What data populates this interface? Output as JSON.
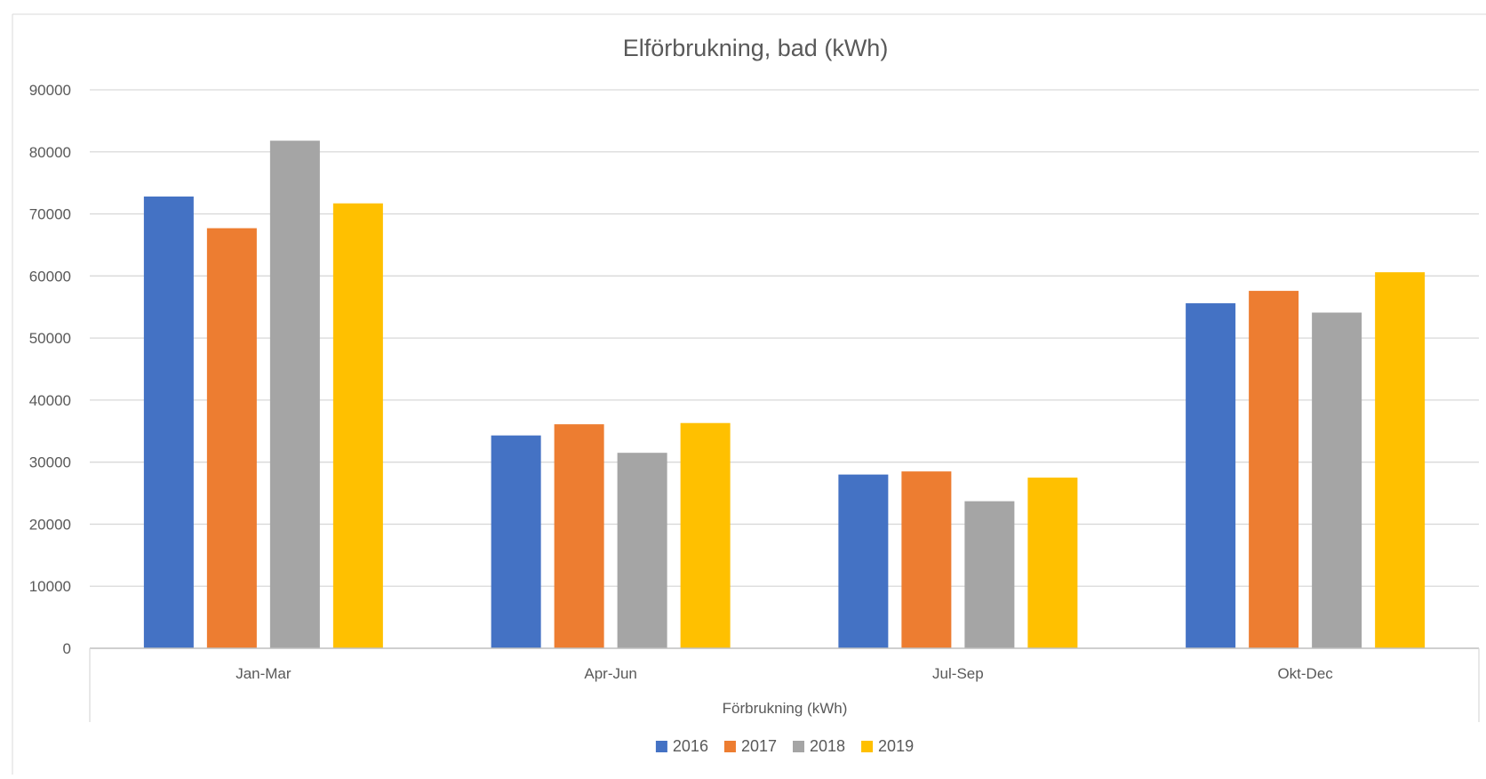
{
  "chart_data": {
    "type": "bar",
    "title": "Elförbrukning, bad (kWh)",
    "xlabel": "Förbrukning (kWh)",
    "ylabel": "",
    "categories": [
      "Jan-Mar",
      "Apr-Jun",
      "Jul-Sep",
      "Okt-Dec"
    ],
    "series": [
      {
        "name": "2016",
        "color": "#4472C4",
        "values": [
          72800,
          34300,
          28000,
          55600
        ]
      },
      {
        "name": "2017",
        "color": "#ED7D31",
        "values": [
          67700,
          36100,
          28500,
          57600
        ]
      },
      {
        "name": "2018",
        "color": "#A5A5A5",
        "values": [
          81800,
          31500,
          23700,
          54100
        ]
      },
      {
        "name": "2019",
        "color": "#FFC000",
        "values": [
          71700,
          36300,
          27500,
          60600
        ]
      }
    ],
    "ylim": [
      0,
      90000
    ],
    "yticks": [
      0,
      10000,
      20000,
      30000,
      40000,
      50000,
      60000,
      70000,
      80000,
      90000
    ],
    "grid": true,
    "legend_position": "bottom"
  }
}
